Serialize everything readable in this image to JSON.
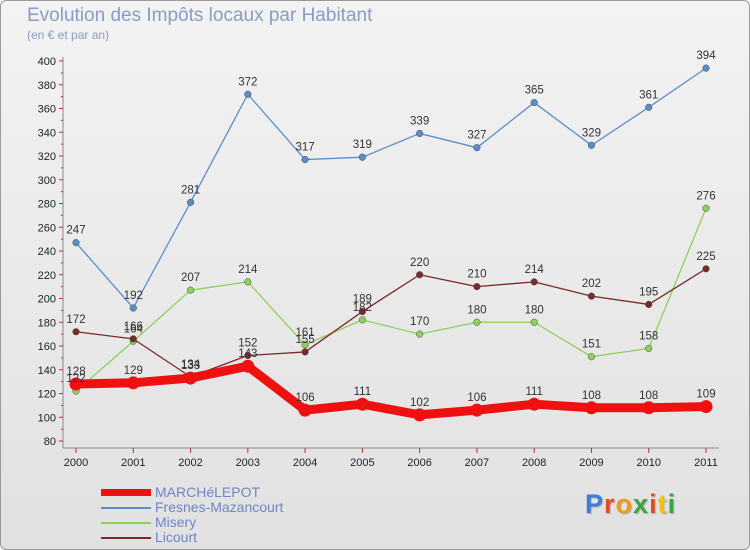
{
  "title": "Evolution des Impôts locaux par Habitant",
  "subtitle": "(en € et par an)",
  "logo_text": "Proxiti",
  "chart_data": {
    "type": "line",
    "title": "Evolution des Impôts locaux par Habitant",
    "ylabel": "(en € et par an)",
    "xlabel": "",
    "ylim": [
      80,
      400
    ],
    "ystep": 20,
    "grid": false,
    "x": [
      "2000",
      "2001",
      "2002",
      "2003",
      "2004",
      "2005",
      "2006",
      "2007",
      "2008",
      "2009",
      "2010",
      "2011"
    ],
    "yticks": [
      "80",
      "100",
      "120",
      "140",
      "160",
      "180",
      "200",
      "220",
      "240",
      "260",
      "280",
      "300",
      "320",
      "340",
      "360",
      "380",
      "400"
    ],
    "series": [
      {
        "name": "Fresnes-Mazancourt",
        "color": "#5b8ec9",
        "values": [
          247,
          192,
          281,
          372,
          317,
          319,
          339,
          327,
          365,
          329,
          361,
          394
        ],
        "labels": [
          "247",
          "192",
          "281",
          "372",
          "317",
          "319",
          "339",
          "327",
          "365",
          "329",
          "361",
          "394"
        ]
      },
      {
        "name": "Misery",
        "color": "#8ed05c",
        "values": [
          122,
          164,
          207,
          214,
          161,
          182,
          170,
          180,
          180,
          151,
          158,
          276
        ],
        "labels": [
          "122",
          "164",
          "207",
          "214",
          "161",
          "182",
          "170",
          "180",
          "180",
          "151",
          "158",
          "276"
        ]
      },
      {
        "name": "Licourt",
        "color": "#7a2a2a",
        "values": [
          172,
          166,
          134,
          152,
          155,
          189,
          220,
          210,
          214,
          202,
          195,
          225
        ],
        "labels": [
          "172",
          "166",
          "134",
          "152",
          "155",
          "189",
          "220",
          "210",
          "214",
          "202",
          "195",
          "225"
        ]
      },
      {
        "name": "MARCHéLEPOT",
        "color": "#ee1111",
        "values": [
          128,
          129,
          133,
          143,
          106,
          111,
          102,
          106,
          111,
          108,
          108,
          109
        ],
        "labels": [
          "128",
          "129",
          "133",
          "143",
          "106",
          "111",
          "102",
          "106",
          "111",
          "108",
          "108",
          "109"
        ]
      }
    ],
    "legend": [
      "MARCHéLEPOT",
      "Fresnes-Mazancourt",
      "Misery",
      "Licourt"
    ],
    "legend_position": "bottom-left"
  }
}
